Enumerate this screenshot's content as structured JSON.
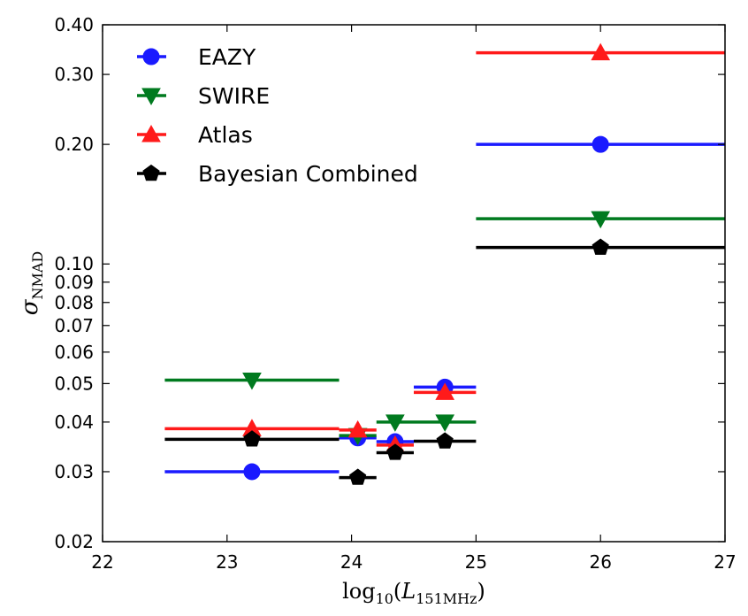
{
  "chart_data": {
    "type": "scatter",
    "title": "",
    "xlabel": {
      "prefix": "log",
      "prefix_sub": "10",
      "open": "(",
      "var": "L",
      "var_sub": "151MHz",
      "close": ")"
    },
    "ylabel": {
      "var": "σ",
      "sub": "NMAD"
    },
    "xlim": [
      22,
      27
    ],
    "ylim": [
      0.02,
      0.4
    ],
    "yscale": "log",
    "grid": false,
    "legend_position": "upper-left",
    "x_ticks": [
      22,
      23,
      24,
      25,
      26,
      27
    ],
    "x_tick_labels": [
      "22",
      "23",
      "24",
      "25",
      "26",
      "27"
    ],
    "y_ticks": [
      0.02,
      0.03,
      0.04,
      0.05,
      0.06,
      0.07,
      0.08,
      0.09,
      0.1,
      0.2,
      0.3,
      0.4
    ],
    "y_tick_labels": [
      "0.02",
      "0.03",
      "0.04",
      "0.05",
      "0.06",
      "0.07",
      "0.08",
      "0.09",
      "0.10",
      "0.20",
      "0.30",
      "0.40"
    ],
    "series": [
      {
        "name": "EAZY",
        "color": "#1a1aff",
        "marker": "circle",
        "points": [
          {
            "x": 23.2,
            "xlo": 22.5,
            "xhi": 23.9,
            "y": 0.03
          },
          {
            "x": 24.05,
            "xlo": 23.9,
            "xhi": 24.2,
            "y": 0.0365
          },
          {
            "x": 24.35,
            "xlo": 24.2,
            "xhi": 24.5,
            "y": 0.0357
          },
          {
            "x": 24.75,
            "xlo": 24.5,
            "xhi": 25.0,
            "y": 0.049
          },
          {
            "x": 26.0,
            "xlo": 25.0,
            "xhi": 27.0,
            "y": 0.2
          }
        ]
      },
      {
        "name": "SWIRE",
        "color": "#007a1f",
        "marker": "triangle-down",
        "points": [
          {
            "x": 23.2,
            "xlo": 22.5,
            "xhi": 23.9,
            "y": 0.051
          },
          {
            "x": 24.05,
            "xlo": 23.9,
            "xhi": 24.2,
            "y": 0.037
          },
          {
            "x": 24.35,
            "xlo": 24.2,
            "xhi": 24.5,
            "y": 0.04
          },
          {
            "x": 24.75,
            "xlo": 24.5,
            "xhi": 25.0,
            "y": 0.04
          },
          {
            "x": 26.0,
            "xlo": 25.0,
            "xhi": 27.0,
            "y": 0.13
          }
        ]
      },
      {
        "name": "Atlas",
        "color": "#ff1a1a",
        "marker": "triangle-up",
        "points": [
          {
            "x": 23.2,
            "xlo": 22.5,
            "xhi": 23.9,
            "y": 0.0385
          },
          {
            "x": 24.05,
            "xlo": 23.9,
            "xhi": 24.2,
            "y": 0.0382
          },
          {
            "x": 24.35,
            "xlo": 24.2,
            "xhi": 24.5,
            "y": 0.035
          },
          {
            "x": 24.75,
            "xlo": 24.5,
            "xhi": 25.0,
            "y": 0.0475
          },
          {
            "x": 26.0,
            "xlo": 25.0,
            "xhi": 27.0,
            "y": 0.34
          }
        ]
      },
      {
        "name": "Bayesian Combined",
        "color": "#000000",
        "marker": "pentagon",
        "points": [
          {
            "x": 23.2,
            "xlo": 22.5,
            "xhi": 23.9,
            "y": 0.0362
          },
          {
            "x": 24.05,
            "xlo": 23.9,
            "xhi": 24.2,
            "y": 0.029
          },
          {
            "x": 24.35,
            "xlo": 24.2,
            "xhi": 24.5,
            "y": 0.0335
          },
          {
            "x": 24.75,
            "xlo": 24.5,
            "xhi": 25.0,
            "y": 0.0358
          },
          {
            "x": 26.0,
            "xlo": 25.0,
            "xhi": 27.0,
            "y": 0.11
          }
        ]
      }
    ]
  }
}
